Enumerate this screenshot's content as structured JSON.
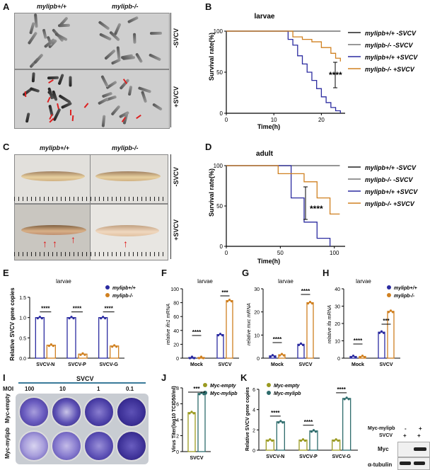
{
  "panels": {
    "A": {
      "label": "A",
      "col_headers": [
        "mylipb+/+",
        "mylipb-/-"
      ],
      "row_labels": [
        "-SVCV",
        "+SVCV"
      ]
    },
    "B": {
      "label": "B",
      "title": "larvae",
      "ylabel": "Survival rate(%)",
      "xlabel": "Time(h)",
      "xticks": [
        "0",
        "10",
        "20"
      ],
      "yticks": [
        "0",
        "50",
        "100"
      ],
      "sig": "****",
      "legend": [
        "mylipb+/+ -SVCV",
        "mylipb-/- -SVCV",
        "mylipb+/+ +SVCV",
        "mylipb-/- +SVCV"
      ]
    },
    "C": {
      "label": "C",
      "col_headers": [
        "mylipb+/+",
        "mylipb-/-"
      ],
      "row_labels": [
        "-SVCV",
        "+SVCV"
      ]
    },
    "D": {
      "label": "D",
      "title": "adult",
      "ylabel": "Survival rate(%)",
      "xlabel": "Time(h)",
      "xticks": [
        "0",
        "50",
        "100"
      ],
      "yticks": [
        "0",
        "50",
        "100"
      ],
      "sig": "****",
      "legend": [
        "mylipb+/+ -SVCV",
        "mylipb-/- -SVCV",
        "mylipb+/+ +SVCV",
        "mylipb-/- +SVCV"
      ]
    },
    "E": {
      "label": "E",
      "title": "larvae",
      "ylabel": "Relative SVCV gene copies",
      "categories": [
        "SVCV-N",
        "SVCV-P",
        "SVCV-G"
      ],
      "yticks": [
        "0.0",
        "0.5",
        "1.0",
        "1.5"
      ],
      "sig": [
        "****",
        "****",
        "****"
      ],
      "legend": [
        "mylipb+/+",
        "mylipb-/-"
      ]
    },
    "F": {
      "label": "F",
      "title": "larvae",
      "ylabel": "relative ifn1 mRNA",
      "categories": [
        "Mock",
        "SVCV"
      ],
      "yticks": [
        "0",
        "20",
        "40",
        "60",
        "80",
        "100"
      ],
      "sig": [
        "****",
        "***"
      ]
    },
    "G": {
      "label": "G",
      "title": "larvae",
      "ylabel": "relative mxc mRNA",
      "categories": [
        "Mock",
        "SVCV"
      ],
      "yticks": [
        "0",
        "10",
        "20",
        "30"
      ],
      "sig": [
        "****",
        "****"
      ]
    },
    "H": {
      "label": "H",
      "title": "larvae",
      "ylabel": "relative ifa mRNA",
      "categories": [
        "Mock",
        "SVCV"
      ],
      "yticks": [
        "0",
        "10",
        "20",
        "30",
        "40"
      ],
      "sig": [
        "****",
        "***"
      ],
      "legend": [
        "mylipb+/+",
        "mylipb-/-"
      ]
    },
    "I": {
      "label": "I",
      "top": "SVCV",
      "moi_label": "MOI",
      "moi": [
        "100",
        "10",
        "1",
        "0.1"
      ],
      "row_labels": [
        "Myc-empty",
        "Myc-mylipb"
      ]
    },
    "J": {
      "label": "J",
      "ylabel": "Virus Titer(log10 TCID50/ml)",
      "category": "SVCV",
      "yticks": [
        "0",
        "2",
        "4",
        "6",
        "8"
      ],
      "sig": "***",
      "legend": [
        "Myc-empty",
        "Myc-mylipb"
      ]
    },
    "K": {
      "label": "K",
      "ylabel": "Relative SVCV gene copies",
      "categories": [
        "SVCV-N",
        "SVCV-P",
        "SVCV-G"
      ],
      "yticks": [
        "0",
        "2",
        "4",
        "6"
      ],
      "sig": [
        "****",
        "****",
        "****"
      ],
      "legend": [
        "Myc-empty",
        "Myc-mylipb"
      ],
      "blot": {
        "row1_label": "Myc-mylipb",
        "row2_label": "SVCV",
        "row1_vals": [
          "-",
          "+"
        ],
        "row2_vals": [
          "+",
          "+"
        ],
        "bands": [
          "Myc",
          "α-tubulin"
        ]
      }
    }
  },
  "chart_data": [
    {
      "id": "B",
      "type": "line",
      "title": "larvae",
      "xlabel": "Time(h)",
      "ylabel": "Survival rate(%)",
      "xlim": [
        0,
        25
      ],
      "ylim": [
        0,
        100
      ],
      "series": [
        {
          "name": "mylipb+/+ -SVCV",
          "color": "#222222",
          "x": [
            0,
            24
          ],
          "y": [
            100,
            100
          ]
        },
        {
          "name": "mylipb-/- -SVCV",
          "color": "#777777",
          "x": [
            0,
            24
          ],
          "y": [
            100,
            100
          ]
        },
        {
          "name": "mylipb+/+ +SVCV",
          "color": "#2b2ba0",
          "x": [
            0,
            12,
            13,
            14,
            15,
            16,
            17,
            18,
            19,
            20,
            21,
            22,
            23,
            24
          ],
          "y": [
            100,
            100,
            90,
            83,
            70,
            60,
            50,
            40,
            30,
            20,
            13,
            7,
            3,
            0
          ]
        },
        {
          "name": "mylipb-/- +SVCV",
          "color": "#d08020",
          "x": [
            0,
            13,
            14,
            16,
            18,
            20,
            22,
            23,
            24
          ],
          "y": [
            100,
            100,
            93,
            90,
            87,
            80,
            73,
            67,
            63
          ]
        }
      ]
    },
    {
      "id": "D",
      "type": "line",
      "title": "adult",
      "xlabel": "Time(h)",
      "ylabel": "Survival rate(%)",
      "xlim": [
        0,
        110
      ],
      "ylim": [
        0,
        100
      ],
      "series": [
        {
          "name": "mylipb+/+ -SVCV",
          "color": "#222222",
          "x": [
            0,
            105
          ],
          "y": [
            100,
            100
          ]
        },
        {
          "name": "mylipb-/- -SVCV",
          "color": "#777777",
          "x": [
            0,
            105
          ],
          "y": [
            100,
            100
          ]
        },
        {
          "name": "mylipb+/+ +SVCV",
          "color": "#2b2ba0",
          "x": [
            0,
            48,
            60,
            72,
            84,
            96
          ],
          "y": [
            100,
            100,
            60,
            30,
            10,
            0
          ]
        },
        {
          "name": "mylipb-/- +SVCV",
          "color": "#d08020",
          "x": [
            0,
            48,
            72,
            84,
            96,
            105
          ],
          "y": [
            100,
            90,
            80,
            60,
            40,
            40
          ]
        }
      ]
    },
    {
      "id": "E",
      "type": "bar",
      "categories": [
        "SVCV-N",
        "SVCV-P",
        "SVCV-G"
      ],
      "ylim": [
        0,
        1.5
      ],
      "series": [
        {
          "name": "mylipb+/+",
          "color": "#2b2ba0",
          "values": [
            1.0,
            1.0,
            1.0
          ]
        },
        {
          "name": "mylipb-/-",
          "color": "#d08020",
          "values": [
            0.32,
            0.1,
            0.3
          ]
        }
      ]
    },
    {
      "id": "F",
      "type": "bar",
      "categories": [
        "Mock",
        "SVCV"
      ],
      "ylim": [
        0,
        100
      ],
      "series": [
        {
          "name": "mylipb+/+",
          "color": "#2b2ba0",
          "values": [
            1,
            34
          ]
        },
        {
          "name": "mylipb-/-",
          "color": "#d08020",
          "values": [
            1,
            83
          ]
        }
      ]
    },
    {
      "id": "G",
      "type": "bar",
      "categories": [
        "Mock",
        "SVCV"
      ],
      "ylim": [
        0,
        30
      ],
      "series": [
        {
          "name": "mylipb+/+",
          "color": "#2b2ba0",
          "values": [
            1,
            6
          ]
        },
        {
          "name": "mylipb-/-",
          "color": "#d08020",
          "values": [
            1.5,
            24
          ]
        }
      ]
    },
    {
      "id": "H",
      "type": "bar",
      "categories": [
        "Mock",
        "SVCV"
      ],
      "ylim": [
        0,
        40
      ],
      "series": [
        {
          "name": "mylipb+/+",
          "color": "#2b2ba0",
          "values": [
            1,
            15
          ]
        },
        {
          "name": "mylipb-/-",
          "color": "#d08020",
          "values": [
            1,
            27
          ]
        }
      ]
    },
    {
      "id": "J",
      "type": "bar",
      "categories": [
        "SVCV"
      ],
      "ylim": [
        0,
        8
      ],
      "series": [
        {
          "name": "Myc-empty",
          "color": "#9a9a20",
          "values": [
            4.9
          ]
        },
        {
          "name": "Myc-mylipb",
          "color": "#2d6b6b",
          "values": [
            7.3
          ]
        }
      ]
    },
    {
      "id": "K",
      "type": "bar",
      "categories": [
        "SVCV-N",
        "SVCV-P",
        "SVCV-G"
      ],
      "ylim": [
        0,
        6
      ],
      "series": [
        {
          "name": "Myc-empty",
          "color": "#9a9a20",
          "values": [
            1,
            1,
            1
          ]
        },
        {
          "name": "Myc-mylipb",
          "color": "#2d6b6b",
          "values": [
            2.8,
            1.9,
            5.1
          ]
        }
      ]
    }
  ]
}
